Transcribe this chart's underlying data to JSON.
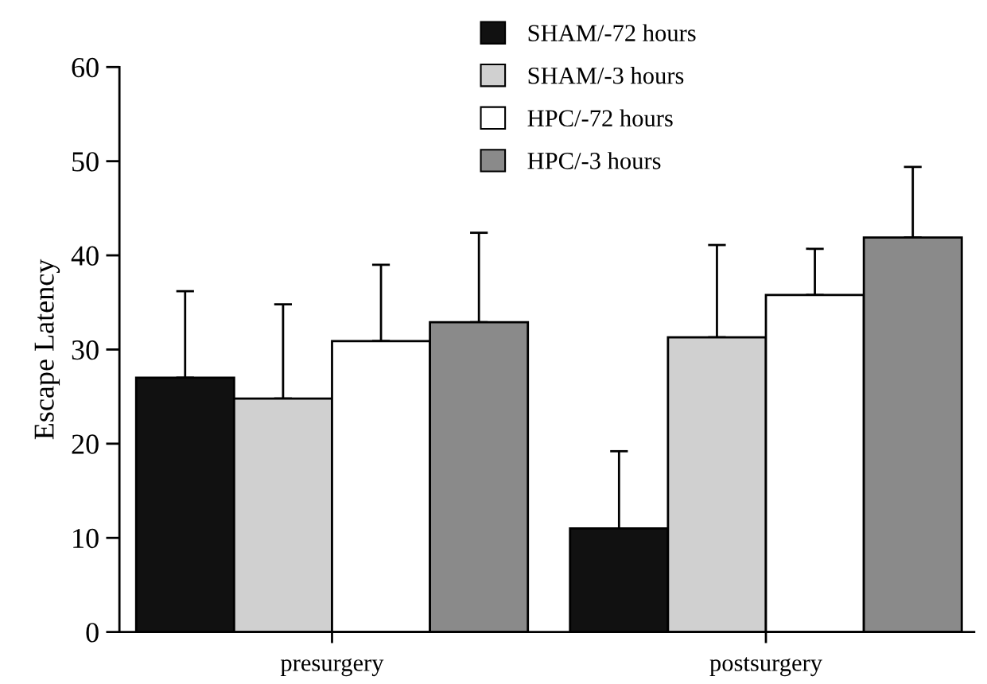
{
  "chart_data": {
    "type": "bar",
    "ylabel": "Escape Latency",
    "categories": [
      "presurgery",
      "postsurgery"
    ],
    "series": [
      {
        "name": "SHAM/-72 hours",
        "color": "#111111",
        "values": [
          27,
          11
        ],
        "errors": [
          [
            27,
            36.2
          ],
          [
            11,
            19.2
          ]
        ]
      },
      {
        "name": "SHAM/-3 hours",
        "color": "#d0d0d0",
        "values": [
          24.8,
          31.3
        ],
        "errors": [
          [
            24.8,
            34.8
          ],
          [
            31.3,
            41.1
          ]
        ]
      },
      {
        "name": "HPC/-72 hours",
        "color": "#ffffff",
        "values": [
          30.9,
          35.8
        ],
        "errors": [
          [
            30.9,
            39
          ],
          [
            35.8,
            40.7
          ]
        ]
      },
      {
        "name": "HPC/-3 hours",
        "color": "#8a8a8a",
        "values": [
          32.9,
          41.9
        ],
        "errors": [
          [
            32.9,
            42.4
          ],
          [
            41.9,
            49.4
          ]
        ]
      }
    ],
    "ylim": [
      0,
      60
    ],
    "yticks": [
      0,
      10,
      20,
      30,
      40,
      50,
      60
    ],
    "grid": false,
    "legend": "top right"
  }
}
